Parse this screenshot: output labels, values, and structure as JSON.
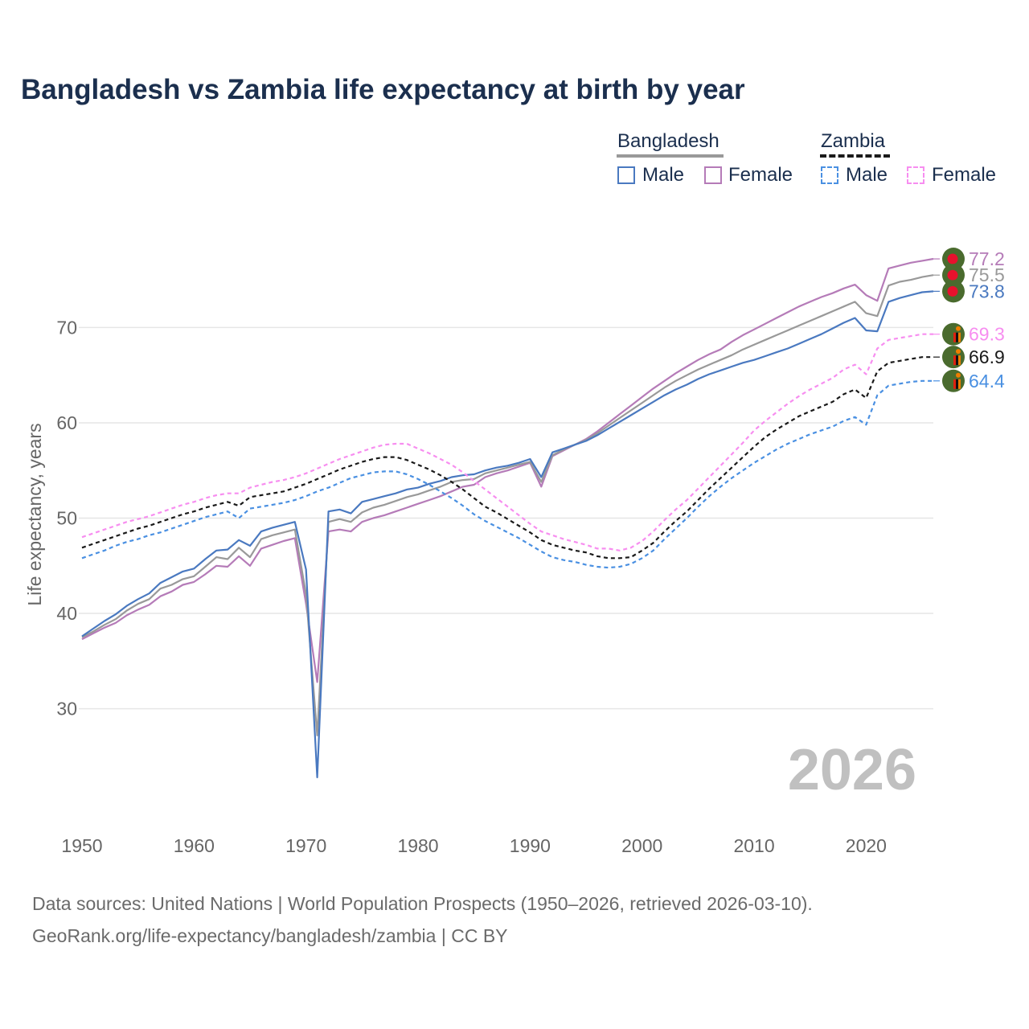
{
  "title": "Bangladesh vs Zambia life expectancy at birth by year",
  "legend": {
    "groups": [
      {
        "country": "Bangladesh",
        "items": [
          "Male",
          "Female"
        ]
      },
      {
        "country": "Zambia",
        "items": [
          "Male",
          "Female"
        ]
      }
    ]
  },
  "year_label": "2026",
  "source_line1": "Data sources: United Nations | World Population Prospects (1950–2026, retrieved 2026-03-10).",
  "source_line2": "GeoRank.org/life-expectancy/bangladesh/zambia | CC BY",
  "colors": {
    "bd_male": "#4a79c0",
    "bd_female": "#b57bb8",
    "bd_total": "#999999",
    "zm_male": "#4a90e2",
    "zm_female": "#f78ef0",
    "zm_total": "#1a1a1a",
    "grid": "#e6e6e6",
    "axis_text": "#666666",
    "title": "#1b2f4e",
    "flag_bg": "#4a6b2e",
    "bd_flag_red": "#e8112d",
    "year_watermark": "#c0c0c0"
  },
  "chart_data": {
    "type": "line",
    "title": "Bangladesh vs Zambia life expectancy at birth by year",
    "xlabel": "",
    "ylabel": "Life expectancy, years",
    "xlim": [
      1950,
      2026
    ],
    "ylim": [
      19,
      81
    ],
    "xticks": [
      1950,
      1960,
      1970,
      1980,
      1990,
      2000,
      2010,
      2020
    ],
    "yticks": [
      30,
      40,
      50,
      60,
      70
    ],
    "x_start": 1950,
    "series": [
      {
        "name": "Bangladesh Female",
        "country": "Bangladesh",
        "key": "bd_female",
        "dash": false,
        "label": "77.2",
        "values": [
          37.3,
          37.9,
          38.5,
          39.0,
          39.8,
          40.4,
          40.9,
          41.8,
          42.3,
          43.0,
          43.3,
          44.1,
          45.0,
          44.9,
          46.0,
          45.0,
          46.8,
          47.2,
          47.6,
          47.9,
          41.0,
          32.8,
          48.6,
          48.8,
          48.6,
          49.6,
          50.0,
          50.3,
          50.7,
          51.1,
          51.5,
          51.9,
          52.3,
          52.8,
          53.3,
          53.5,
          54.3,
          54.7,
          55.0,
          55.4,
          55.8,
          53.3,
          56.5,
          57.1,
          57.7,
          58.3,
          59.1,
          60.0,
          60.9,
          61.8,
          62.7,
          63.6,
          64.4,
          65.2,
          65.9,
          66.6,
          67.2,
          67.7,
          68.5,
          69.2,
          69.8,
          70.4,
          71.0,
          71.6,
          72.2,
          72.7,
          73.2,
          73.6,
          74.1,
          74.5,
          73.4,
          72.8,
          76.2,
          76.5,
          76.8,
          77.0,
          77.2
        ]
      },
      {
        "name": "Bangladesh Total",
        "country": "Bangladesh",
        "key": "bd_total",
        "dash": false,
        "label": "75.5",
        "values": [
          37.5,
          38.1,
          38.8,
          39.4,
          40.3,
          41.0,
          41.5,
          42.6,
          43.0,
          43.6,
          43.9,
          44.9,
          45.9,
          45.7,
          46.9,
          45.9,
          47.8,
          48.2,
          48.5,
          48.8,
          42.0,
          27.2,
          49.6,
          49.9,
          49.6,
          50.6,
          51.1,
          51.4,
          51.8,
          52.2,
          52.5,
          52.9,
          53.3,
          53.8,
          54.0,
          54.1,
          54.7,
          55.0,
          55.3,
          55.6,
          55.9,
          53.8,
          56.6,
          57.2,
          57.7,
          58.2,
          58.9,
          59.7,
          60.5,
          61.3,
          62.1,
          62.9,
          63.7,
          64.4,
          65.0,
          65.6,
          66.1,
          66.6,
          67.1,
          67.7,
          68.2,
          68.7,
          69.2,
          69.7,
          70.2,
          70.7,
          71.2,
          71.7,
          72.2,
          72.7,
          71.5,
          71.2,
          74.4,
          74.8,
          75.0,
          75.3,
          75.5
        ]
      },
      {
        "name": "Bangladesh Male",
        "country": "Bangladesh",
        "key": "bd_male",
        "dash": false,
        "label": "73.8",
        "values": [
          37.6,
          38.4,
          39.2,
          39.9,
          40.8,
          41.5,
          42.1,
          43.2,
          43.8,
          44.4,
          44.7,
          45.7,
          46.6,
          46.7,
          47.7,
          47.1,
          48.6,
          49.0,
          49.3,
          49.6,
          44.6,
          22.8,
          50.7,
          50.9,
          50.5,
          51.7,
          52.0,
          52.3,
          52.6,
          53.0,
          53.2,
          53.6,
          53.9,
          54.3,
          54.5,
          54.6,
          55.0,
          55.3,
          55.5,
          55.8,
          56.2,
          54.3,
          56.9,
          57.3,
          57.7,
          58.1,
          58.7,
          59.4,
          60.1,
          60.8,
          61.5,
          62.2,
          62.9,
          63.5,
          64.0,
          64.6,
          65.1,
          65.5,
          65.9,
          66.3,
          66.6,
          67.0,
          67.4,
          67.8,
          68.3,
          68.8,
          69.3,
          69.9,
          70.5,
          71.0,
          69.7,
          69.6,
          72.7,
          73.1,
          73.4,
          73.7,
          73.8
        ]
      },
      {
        "name": "Zambia Female",
        "country": "Zambia",
        "key": "zm_female",
        "dash": true,
        "label": "69.3",
        "values": [
          48.0,
          48.4,
          48.8,
          49.2,
          49.6,
          49.9,
          50.2,
          50.6,
          51.0,
          51.4,
          51.7,
          52.1,
          52.4,
          52.6,
          52.6,
          53.2,
          53.5,
          53.8,
          54.0,
          54.3,
          54.7,
          55.2,
          55.7,
          56.2,
          56.6,
          57.0,
          57.4,
          57.7,
          57.8,
          57.8,
          57.3,
          56.8,
          56.2,
          55.6,
          54.8,
          53.9,
          53.0,
          52.1,
          51.2,
          50.3,
          49.4,
          48.6,
          48.2,
          47.8,
          47.5,
          47.2,
          46.8,
          46.8,
          46.6,
          46.9,
          47.6,
          48.6,
          49.8,
          50.9,
          51.9,
          53.1,
          54.3,
          55.5,
          56.7,
          57.9,
          59.2,
          60.2,
          61.1,
          62.0,
          62.8,
          63.5,
          64.1,
          64.7,
          65.6,
          66.1,
          65.1,
          67.8,
          68.7,
          68.9,
          69.1,
          69.3,
          69.3
        ]
      },
      {
        "name": "Zambia Total",
        "country": "Zambia",
        "key": "zm_total",
        "dash": true,
        "label": "66.9",
        "values": [
          46.9,
          47.3,
          47.7,
          48.1,
          48.5,
          48.9,
          49.2,
          49.6,
          50.0,
          50.4,
          50.7,
          51.1,
          51.4,
          51.7,
          51.3,
          52.2,
          52.4,
          52.6,
          52.8,
          53.2,
          53.6,
          54.1,
          54.6,
          55.1,
          55.5,
          55.9,
          56.2,
          56.4,
          56.4,
          56.1,
          55.6,
          55.1,
          54.5,
          53.8,
          53.0,
          52.1,
          51.2,
          50.6,
          49.9,
          49.2,
          48.5,
          47.7,
          47.2,
          46.9,
          46.6,
          46.4,
          46.0,
          45.8,
          45.8,
          45.9,
          46.6,
          47.4,
          48.6,
          49.7,
          50.7,
          51.9,
          53.1,
          54.2,
          55.3,
          56.4,
          57.5,
          58.5,
          59.3,
          60.0,
          60.7,
          61.2,
          61.7,
          62.2,
          63.0,
          63.5,
          62.6,
          65.4,
          66.3,
          66.5,
          66.7,
          66.9,
          66.9
        ]
      },
      {
        "name": "Zambia Male",
        "country": "Zambia",
        "key": "zm_male",
        "dash": true,
        "label": "64.4",
        "values": [
          45.8,
          46.2,
          46.6,
          47.1,
          47.5,
          47.8,
          48.2,
          48.5,
          48.9,
          49.3,
          49.7,
          50.1,
          50.4,
          50.7,
          50.0,
          51.0,
          51.2,
          51.4,
          51.6,
          51.9,
          52.3,
          52.8,
          53.2,
          53.7,
          54.2,
          54.5,
          54.8,
          54.9,
          54.9,
          54.6,
          54.1,
          53.5,
          52.8,
          52.1,
          51.3,
          50.4,
          49.7,
          49.1,
          48.5,
          47.9,
          47.2,
          46.5,
          45.9,
          45.6,
          45.4,
          45.1,
          44.9,
          44.8,
          44.9,
          45.2,
          45.8,
          46.6,
          47.8,
          48.9,
          50.0,
          51.2,
          52.3,
          53.3,
          54.2,
          55.0,
          55.8,
          56.5,
          57.2,
          57.8,
          58.3,
          58.8,
          59.2,
          59.6,
          60.2,
          60.6,
          59.8,
          62.9,
          63.9,
          64.1,
          64.3,
          64.4,
          64.4
        ]
      }
    ]
  }
}
